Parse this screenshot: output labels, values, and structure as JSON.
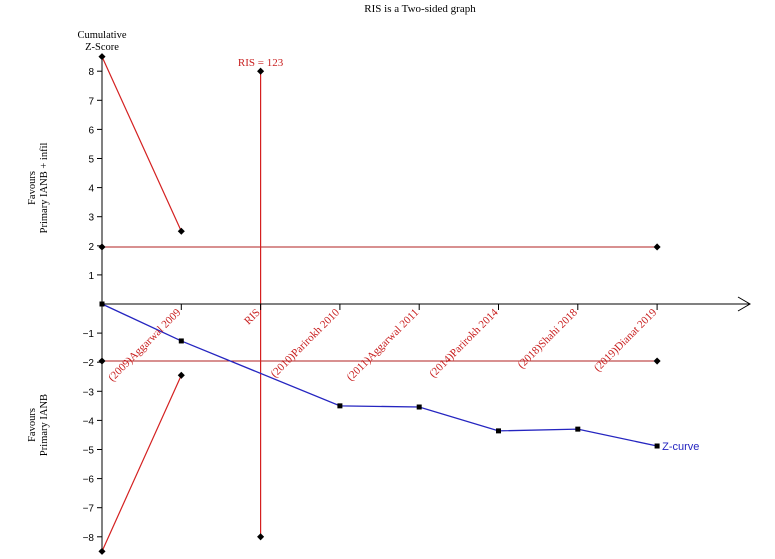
{
  "chart_data": {
    "type": "line",
    "title": "RIS is a Two-sided graph",
    "ylabel": "Cumulative\nZ-Score",
    "ylim": [
      -8,
      8
    ],
    "yticks": [
      8,
      7,
      6,
      5,
      4,
      3,
      2,
      1,
      -1,
      -2,
      -3,
      -4,
      -5,
      -6,
      -7,
      -8
    ],
    "upper_side_label": [
      "Favours",
      "Primary IANB + infil"
    ],
    "lower_side_label": [
      "Favours",
      "Primary IANB"
    ],
    "ris_label": "RIS = 123",
    "ris_axis_label": "RIS",
    "ris_position": 123,
    "studies": [
      "(2009)Aggarwal 2009",
      "(2010)Parirokh 2010",
      "(2011)Aggarwal 2011",
      "(2014)Parirokh 2014",
      "(2018)Shahi 2018",
      "(2019)Dianat 2019"
    ],
    "series": [
      {
        "name": "Z-curve",
        "color": "#2525c0",
        "x": [
          0,
          1,
          3,
          4,
          5,
          6,
          7
        ],
        "values": [
          0,
          -1.27,
          -3.5,
          -3.54,
          -4.36,
          -4.3,
          -4.88
        ]
      }
    ],
    "conventional_boundaries": {
      "color": "#b22222",
      "upper": 1.96,
      "lower": -1.96,
      "x_range": [
        0,
        7
      ]
    },
    "monitoring_boundaries": {
      "color": "#e03030",
      "upper": {
        "x": [
          0,
          1
        ],
        "values": [
          8.5,
          2.5
        ]
      },
      "lower": {
        "x": [
          0,
          1
        ],
        "values": [
          -8.5,
          -2.45
        ]
      }
    },
    "colors": {
      "axis": "#000000",
      "boundary": "#d42020",
      "zcurve": "#2525c0",
      "text_red": "#c81e1e"
    }
  }
}
